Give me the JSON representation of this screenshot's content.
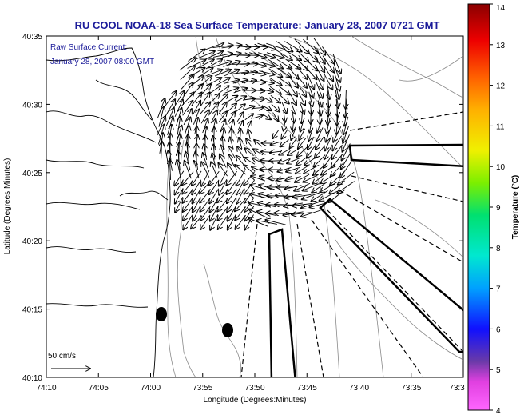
{
  "title": "RU COOL  NOAA-18  Sea Surface Temperature:  January 28, 2007 0721 GMT",
  "annotation": {
    "line1": "Raw Surface Current:",
    "line2": "January 28, 2007 08:00 GMT"
  },
  "scale_label": "50 cm/s",
  "x_axis": {
    "label": "Longitude (Degrees:Minutes)",
    "ticks": [
      "74:10",
      "74:05",
      "74:00",
      "73:55",
      "73:50",
      "73:45",
      "73:40",
      "73:35",
      "73:3"
    ]
  },
  "y_axis": {
    "label": "Latitude (Degrees:Minutes)",
    "ticks": [
      "40:10",
      "40:15",
      "40:20",
      "40:25",
      "40:30",
      "40:35"
    ]
  },
  "colorbar": {
    "label": "Temperature (°C)",
    "ticks": [
      "4",
      "5",
      "6",
      "7",
      "8",
      "9",
      "10",
      "11",
      "12",
      "13",
      "14"
    ],
    "min": 4,
    "max": 14
  },
  "colors": {
    "title": "#1c1c9a",
    "coast": "#000000",
    "bathymetry": "#8a8a8a"
  }
}
